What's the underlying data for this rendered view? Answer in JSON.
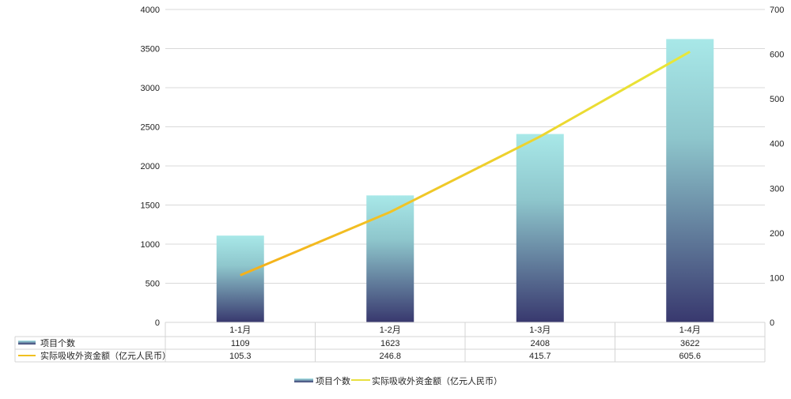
{
  "chart_data": {
    "type": "bar+line",
    "categories": [
      "1-1月",
      "1-2月",
      "1-3月",
      "1-4月"
    ],
    "series": [
      {
        "name": "项目个数",
        "type": "bar",
        "axis": "left",
        "values": [
          1109,
          1623,
          2408,
          3622
        ]
      },
      {
        "name": "实际吸收外资金额（亿元人民币）",
        "type": "line",
        "axis": "right",
        "values": [
          105.3,
          246.8,
          415.7,
          605.6
        ]
      }
    ],
    "y_left": {
      "min": 0,
      "max": 4000,
      "ticks": [
        0,
        500,
        1000,
        1500,
        2000,
        2500,
        3000,
        3500,
        4000
      ]
    },
    "y_right": {
      "min": 0,
      "max": 700,
      "ticks": [
        0,
        100,
        200,
        300,
        400,
        500,
        600,
        700
      ]
    },
    "grid": true,
    "legend": "bottom",
    "data_table": true,
    "colors": {
      "bar_top": "#a8e8e8",
      "bar_bottom": "#38386e",
      "line_start": "#f5b01a",
      "line_end": "#e8e83a",
      "grid": "#d9d9d9"
    }
  }
}
